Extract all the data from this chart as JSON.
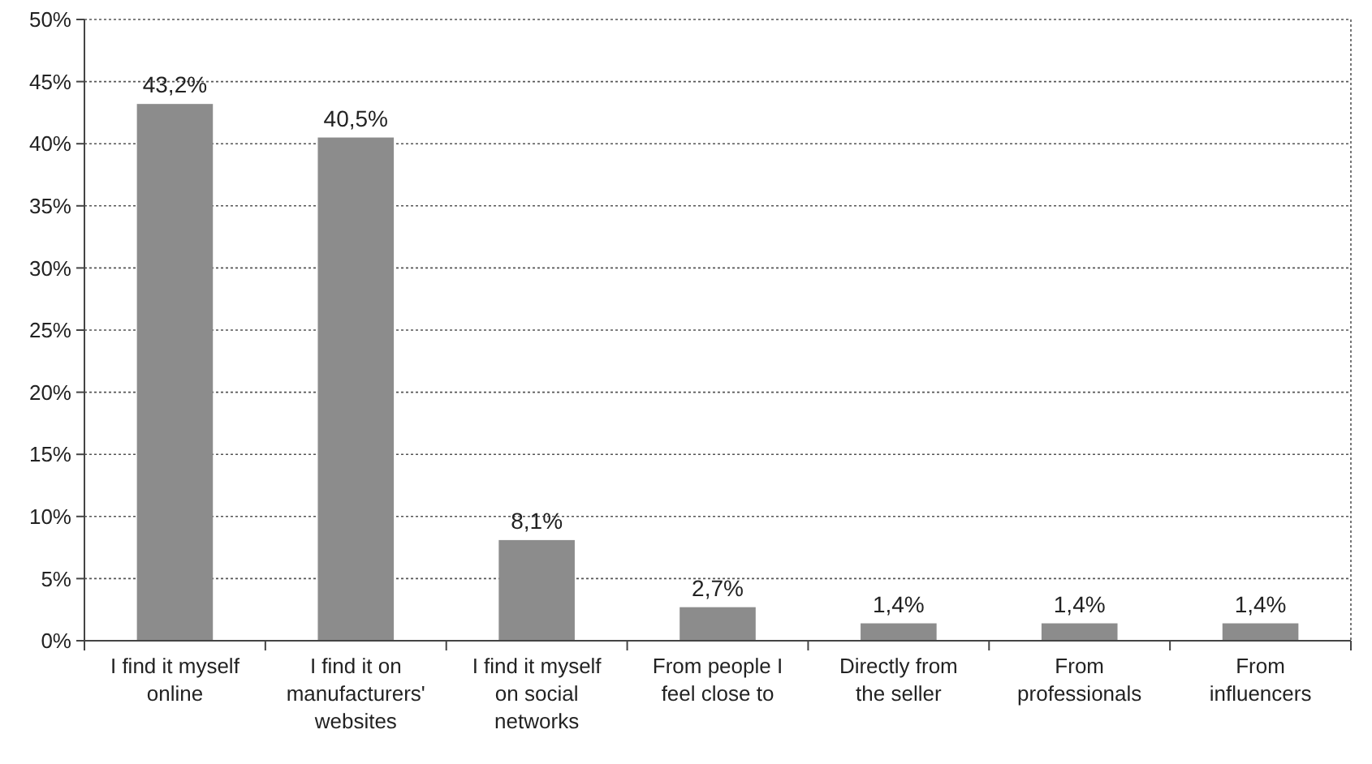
{
  "chart_data": {
    "type": "bar",
    "categories": [
      "I find it myself online",
      "I find it on manufacturers' websites",
      "I find it myself on social networks",
      "From people I feel close to",
      "Directly from the seller",
      "From professionals",
      "From influencers"
    ],
    "values": [
      43.2,
      40.5,
      8.1,
      2.7,
      1.4,
      1.4,
      1.4
    ],
    "value_labels": [
      "43,2%",
      "40,5%",
      "8,1%",
      "2,7%",
      "1,4%",
      "1,4%",
      "1,4%"
    ],
    "color": "#8c8c8c",
    "ylim": [
      0,
      50
    ],
    "yticks": [
      {
        "value": 0,
        "label": "0%"
      },
      {
        "value": 5,
        "label": "5%"
      },
      {
        "value": 10,
        "label": "10%"
      },
      {
        "value": 15,
        "label": "15%"
      },
      {
        "value": 20,
        "label": "20%"
      },
      {
        "value": 25,
        "label": "25%"
      },
      {
        "value": 30,
        "label": "30%"
      },
      {
        "value": 35,
        "label": "35%"
      },
      {
        "value": 40,
        "label": "40%"
      },
      {
        "value": 45,
        "label": "45%"
      },
      {
        "value": 50,
        "label": "50%"
      }
    ],
    "grid": "y"
  }
}
